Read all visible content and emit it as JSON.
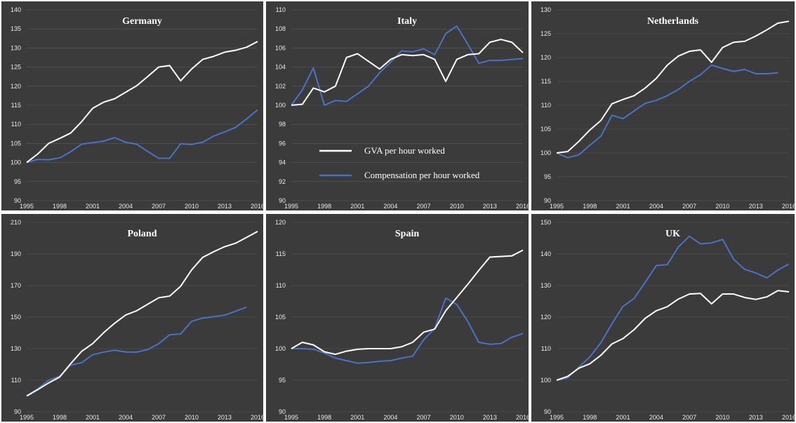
{
  "colors": {
    "gva": "#ffffff",
    "compensation": "#4a72c4",
    "panel_bg": "#3b3b3b",
    "grid": "#5a5a5a"
  },
  "legend": {
    "gva_label": "GVA per hour worked",
    "compensation_label": "Compensation per hour worked"
  },
  "chart_data": [
    {
      "type": "line",
      "title": "Germany",
      "ylim": [
        90,
        140
      ],
      "yticks": [
        90,
        95,
        100,
        105,
        110,
        115,
        120,
        125,
        130,
        135,
        140
      ],
      "xticks": [
        1995,
        1998,
        2001,
        2004,
        2007,
        2010,
        2013,
        2016
      ],
      "x": [
        1995,
        1996,
        1997,
        1998,
        1999,
        2000,
        2001,
        2002,
        2003,
        2004,
        2005,
        2006,
        2007,
        2008,
        2009,
        2010,
        2011,
        2012,
        2013,
        2014,
        2015,
        2016
      ],
      "series": [
        {
          "key": "gva",
          "values": [
            100,
            102.2,
            105,
            106.3,
            107.7,
            110.7,
            114.2,
            115.8,
            116.7,
            118.4,
            120.1,
            122.5,
            125,
            125.4,
            121.4,
            124.5,
            127,
            127.8,
            128.9,
            129.4,
            130.2,
            131.7
          ]
        },
        {
          "key": "compensation",
          "values": [
            100,
            100.8,
            100.7,
            101.2,
            102.8,
            104.8,
            105.2,
            105.6,
            106.5,
            105.3,
            104.8,
            102.9,
            101.1,
            101.1,
            104.9,
            104.7,
            105.3,
            106.9,
            108,
            109.2,
            111.4,
            113.8
          ]
        }
      ],
      "grid": true,
      "legend": false
    },
    {
      "type": "line",
      "title": "Italy",
      "ylim": [
        90,
        110
      ],
      "yticks": [
        90,
        92,
        94,
        96,
        98,
        100,
        102,
        104,
        106,
        108,
        110
      ],
      "xticks": [
        1995,
        1998,
        2001,
        2004,
        2007,
        2010,
        2013,
        2016
      ],
      "x": [
        1995,
        1996,
        1997,
        1998,
        1999,
        2000,
        2001,
        2002,
        2003,
        2004,
        2005,
        2006,
        2007,
        2008,
        2009,
        2010,
        2011,
        2012,
        2013,
        2014,
        2015,
        2016
      ],
      "series": [
        {
          "key": "gva",
          "values": [
            100,
            100.1,
            101.8,
            101.4,
            102,
            105,
            105.4,
            104.6,
            103.8,
            104.8,
            105.3,
            105.2,
            105.3,
            104.8,
            102.5,
            104.8,
            105.3,
            105.4,
            106.6,
            106.9,
            106.6,
            105.5
          ]
        },
        {
          "key": "compensation",
          "values": [
            100,
            101.6,
            103.9,
            100,
            100.5,
            100.4,
            101.2,
            102,
            103.4,
            104.5,
            105.7,
            105.6,
            105.9,
            105.3,
            107.5,
            108.3,
            106.4,
            104.4,
            104.7,
            104.7,
            104.8,
            104.9
          ]
        }
      ],
      "grid": true,
      "legend": true
    },
    {
      "type": "line",
      "title": "Netherlands",
      "ylim": [
        90,
        130
      ],
      "yticks": [
        90,
        95,
        100,
        105,
        110,
        115,
        120,
        125,
        130
      ],
      "xticks": [
        1995,
        1998,
        2001,
        2004,
        2007,
        2010,
        2013,
        2016
      ],
      "x": [
        1995,
        1996,
        1997,
        1998,
        1999,
        2000,
        2001,
        2002,
        2003,
        2004,
        2005,
        2006,
        2007,
        2008,
        2009,
        2010,
        2011,
        2012,
        2013,
        2014,
        2015,
        2016
      ],
      "series": [
        {
          "key": "gva",
          "values": [
            100,
            100.3,
            102.4,
            104.8,
            106.8,
            110.3,
            111.2,
            112,
            113.6,
            115.6,
            118.4,
            120.3,
            121.3,
            121.6,
            119,
            122.1,
            123.2,
            123.4,
            124.5,
            125.8,
            127.2,
            127.6
          ]
        },
        {
          "key": "compensation",
          "values": [
            100,
            99,
            99.6,
            101.6,
            103.5,
            107.9,
            107.2,
            108.8,
            110.4,
            111,
            112,
            113.3,
            115,
            116.4,
            118.4,
            117.7,
            117.1,
            117.5,
            116.6,
            116.6,
            116.8,
            null
          ]
        }
      ],
      "grid": true,
      "legend": false
    },
    {
      "type": "line",
      "title": "Poland",
      "ylim": [
        90,
        210
      ],
      "yticks": [
        90,
        110,
        130,
        150,
        170,
        190,
        210
      ],
      "xticks": [
        1995,
        1998,
        2001,
        2004,
        2007,
        2010,
        2013,
        2016
      ],
      "x": [
        1995,
        1996,
        1997,
        1998,
        1999,
        2000,
        2001,
        2002,
        2003,
        2004,
        2005,
        2006,
        2007,
        2008,
        2009,
        2010,
        2011,
        2012,
        2013,
        2014,
        2015,
        2016
      ],
      "series": [
        {
          "key": "gva",
          "values": [
            100,
            104,
            108.3,
            112,
            120.5,
            128.3,
            133.2,
            140.1,
            146.1,
            151.3,
            154,
            158.1,
            162.2,
            163.3,
            169.5,
            179.9,
            187.8,
            191.4,
            194.6,
            196.8,
            200.5,
            204.3
          ]
        },
        {
          "key": "compensation",
          "values": [
            100,
            104.6,
            110,
            112.5,
            119.6,
            121.1,
            126.2,
            127.8,
            129,
            127.9,
            127.8,
            129.4,
            133.1,
            138.8,
            139.3,
            147.3,
            149.4,
            150.2,
            151.2,
            153.7,
            156.3,
            null
          ]
        }
      ],
      "grid": true,
      "legend": false
    },
    {
      "type": "line",
      "title": "Spain",
      "ylim": [
        90,
        120
      ],
      "yticks": [
        90,
        95,
        100,
        105,
        110,
        115,
        120
      ],
      "xticks": [
        1995,
        1998,
        2001,
        2004,
        2007,
        2010,
        2013,
        2016
      ],
      "x": [
        1995,
        1996,
        1997,
        1998,
        1999,
        2000,
        2001,
        2002,
        2003,
        2004,
        2005,
        2006,
        2007,
        2008,
        2009,
        2010,
        2011,
        2012,
        2013,
        2014,
        2015,
        2016
      ],
      "series": [
        {
          "key": "gva",
          "values": [
            100,
            101,
            100.6,
            99.5,
            99.1,
            99.6,
            99.9,
            100,
            100,
            100,
            100.3,
            101,
            102.6,
            103.1,
            106,
            108.1,
            110.2,
            112.4,
            114.5,
            114.6,
            114.7,
            115.6
          ]
        },
        {
          "key": "compensation",
          "values": [
            100,
            100,
            99.9,
            99.3,
            98.5,
            98.1,
            97.7,
            97.8,
            98,
            98.1,
            98.5,
            98.8,
            101.4,
            103.2,
            108,
            107,
            104.3,
            101,
            100.7,
            100.8,
            101.8,
            102.4
          ]
        }
      ],
      "grid": true,
      "legend": false
    },
    {
      "type": "line",
      "title": "UK",
      "ylim": [
        90,
        150
      ],
      "yticks": [
        90,
        100,
        110,
        120,
        130,
        140,
        150
      ],
      "xticks": [
        1995,
        1998,
        2001,
        2004,
        2007,
        2010,
        2013,
        2016
      ],
      "x": [
        1995,
        1996,
        1997,
        1998,
        1999,
        2000,
        2001,
        2002,
        2003,
        2004,
        2005,
        2006,
        2007,
        2008,
        2009,
        2010,
        2011,
        2012,
        2013,
        2014,
        2015,
        2016
      ],
      "series": [
        {
          "key": "gva",
          "values": [
            100,
            101.2,
            103.8,
            105.2,
            107.9,
            111.5,
            113.2,
            116,
            119.6,
            122,
            123.3,
            125.7,
            127.3,
            127.5,
            124.2,
            127.3,
            127.3,
            126.2,
            125.6,
            126.4,
            128.4,
            128
          ]
        },
        {
          "key": "compensation",
          "values": [
            100,
            100.8,
            104.1,
            107.4,
            111.9,
            117.9,
            123.4,
            125.9,
            131,
            136.3,
            136.6,
            142.2,
            145.6,
            143.2,
            143.5,
            144.6,
            138.3,
            135.1,
            134,
            132.4,
            134.9,
            136.8
          ]
        }
      ],
      "grid": true,
      "legend": false
    }
  ]
}
